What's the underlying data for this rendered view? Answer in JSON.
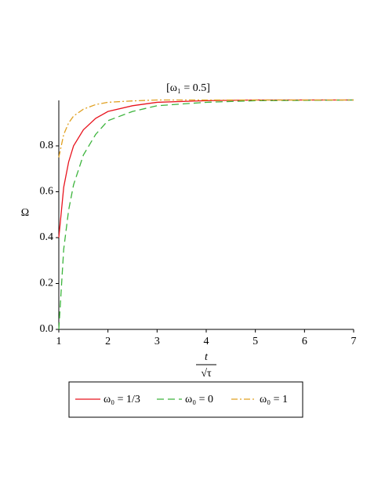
{
  "chart_data": {
    "type": "line",
    "title": "[ω₁ = 0.5]",
    "y_label": "Ω",
    "x_label": {
      "numerator": "t",
      "denominator": "√τ"
    },
    "x": [
      1,
      1.1,
      1.2,
      1.3,
      1.5,
      1.75,
      2,
      2.5,
      3,
      4,
      5,
      7
    ],
    "series": [
      {
        "name": "ω₀ = 1/3",
        "color": "#e8141e",
        "style": "solid",
        "values": [
          0.4,
          0.62,
          0.73,
          0.8,
          0.87,
          0.92,
          0.95,
          0.975,
          0.99,
          0.997,
          1.0,
          1.0
        ]
      },
      {
        "name": "ω₀ = 0",
        "color": "#3cb43c",
        "style": "dash",
        "values": [
          0.0,
          0.35,
          0.52,
          0.63,
          0.76,
          0.85,
          0.91,
          0.95,
          0.975,
          0.99,
          0.997,
          1.0
        ]
      },
      {
        "name": "ω₀ = 1",
        "color": "#e0a020",
        "style": "dashdot",
        "values": [
          0.75,
          0.85,
          0.9,
          0.93,
          0.96,
          0.98,
          0.99,
          0.996,
          1.0,
          1.0,
          1.0,
          1.0
        ]
      }
    ],
    "xlim": [
      1,
      7
    ],
    "xticks": [
      1,
      2,
      3,
      4,
      5,
      6,
      7
    ],
    "ylim": [
      0,
      1
    ],
    "yticks": [
      {
        "value": 0,
        "label": "0.0"
      },
      0.2,
      0.4,
      0.6,
      0.8
    ],
    "grid": false,
    "legend": "bottom"
  }
}
